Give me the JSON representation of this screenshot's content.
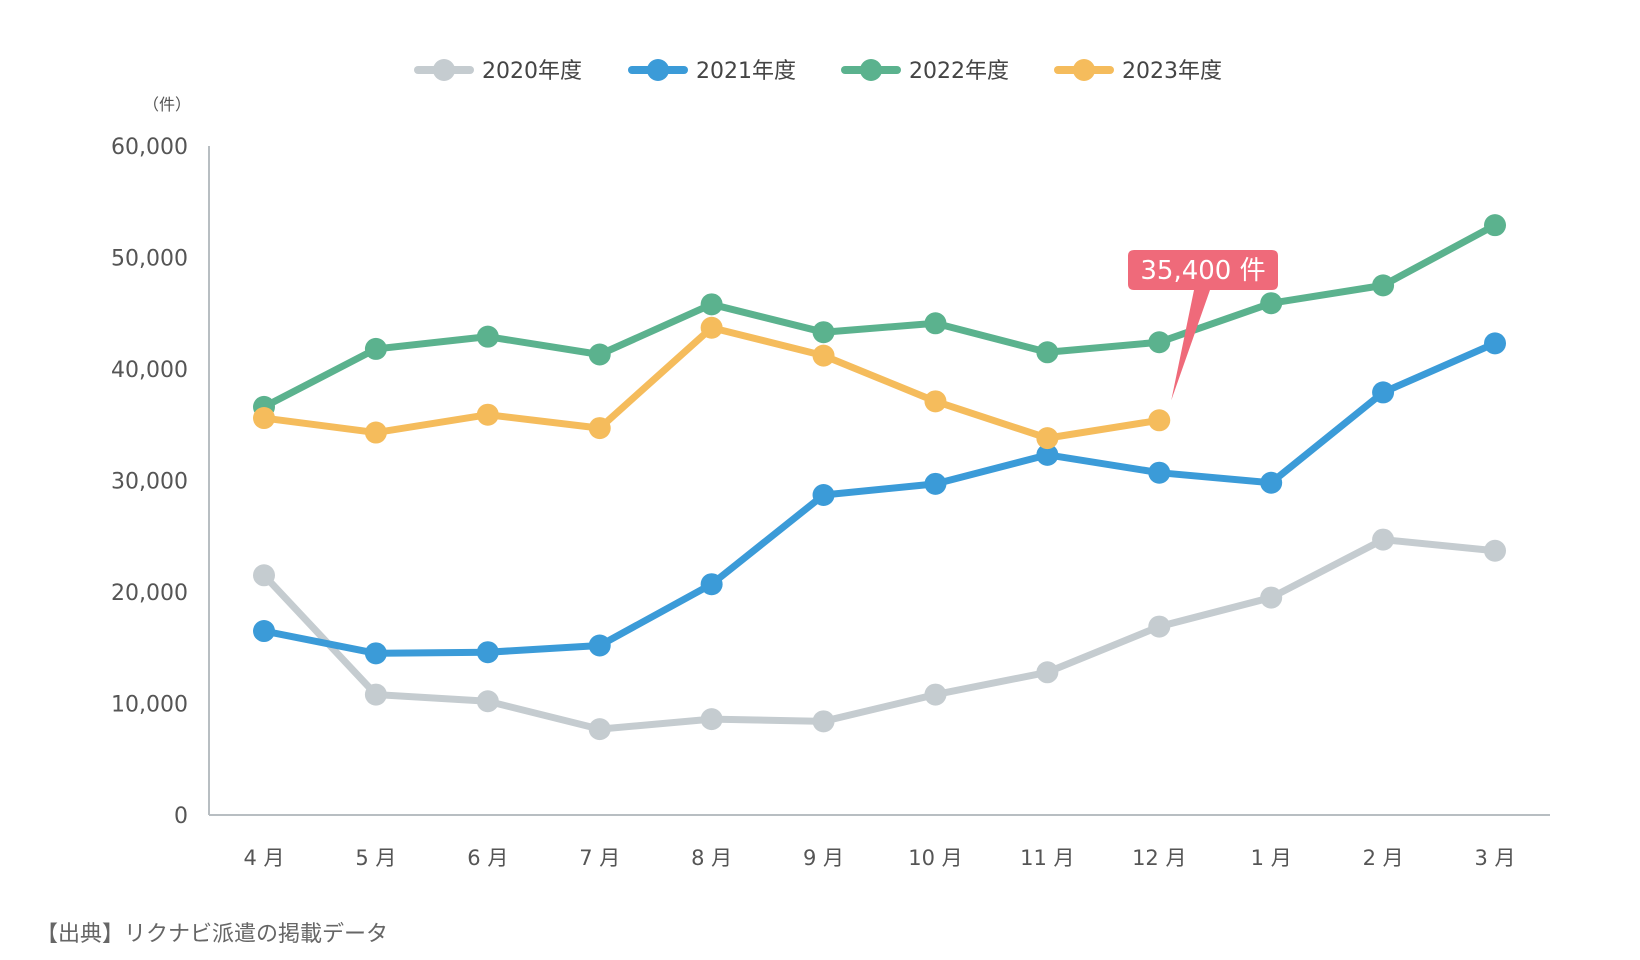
{
  "chart_data": {
    "type": "line",
    "unit_label": "（件）",
    "categories": [
      "4 月",
      "5 月",
      "6 月",
      "7 月",
      "8 月",
      "9 月",
      "10 月",
      "11 月",
      "12 月",
      "1 月",
      "2 月",
      "3 月"
    ],
    "ylim": [
      0,
      60000
    ],
    "yticks": [
      0,
      10000,
      20000,
      30000,
      40000,
      50000,
      60000
    ],
    "ytick_labels": [
      "0",
      "10,000",
      "20,000",
      "30,000",
      "40,000",
      "50,000",
      "60,000"
    ],
    "grid": false,
    "legend_position": "top-center",
    "series": [
      {
        "name": "2020年度",
        "color": "#c5ccd0",
        "values": [
          21500,
          10800,
          10200,
          7700,
          8600,
          8400,
          10800,
          12800,
          16900,
          19500,
          24700,
          23700
        ]
      },
      {
        "name": "2021年度",
        "color": "#3b9bd8",
        "values": [
          16500,
          14500,
          14600,
          15200,
          20700,
          28700,
          29700,
          32300,
          30700,
          29800,
          37900,
          42300
        ]
      },
      {
        "name": "2022年度",
        "color": "#5bb28e",
        "values": [
          36600,
          41800,
          42900,
          41300,
          45800,
          43300,
          44100,
          41500,
          42400,
          45900,
          47500,
          52900
        ]
      },
      {
        "name": "2023年度",
        "color": "#f5bc5c",
        "values": [
          35600,
          34300,
          35900,
          34700,
          43700,
          41200,
          37100,
          33800,
          35400,
          null,
          null,
          null
        ]
      }
    ],
    "annotation": {
      "text": "35,400 件",
      "series": "2023年度",
      "category": "12 月",
      "color": "#ef6a7a"
    }
  },
  "source_note": "【出典】リクナビ派遣の掲載データ"
}
